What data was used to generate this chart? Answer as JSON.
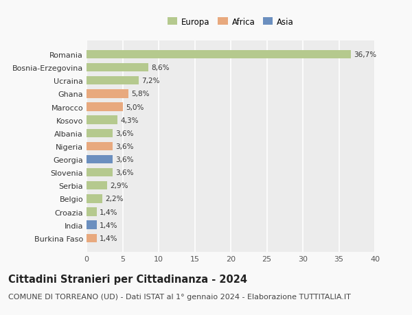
{
  "countries": [
    "Romania",
    "Bosnia-Erzegovina",
    "Ucraina",
    "Ghana",
    "Marocco",
    "Kosovo",
    "Albania",
    "Nigeria",
    "Georgia",
    "Slovenia",
    "Serbia",
    "Belgio",
    "Croazia",
    "India",
    "Burkina Faso"
  ],
  "values": [
    36.7,
    8.6,
    7.2,
    5.8,
    5.0,
    4.3,
    3.6,
    3.6,
    3.6,
    3.6,
    2.9,
    2.2,
    1.4,
    1.4,
    1.4
  ],
  "labels": [
    "36,7%",
    "8,6%",
    "7,2%",
    "5,8%",
    "5,0%",
    "4,3%",
    "3,6%",
    "3,6%",
    "3,6%",
    "3,6%",
    "2,9%",
    "2,2%",
    "1,4%",
    "1,4%",
    "1,4%"
  ],
  "continents": [
    "Europa",
    "Europa",
    "Europa",
    "Africa",
    "Africa",
    "Europa",
    "Europa",
    "Africa",
    "Asia",
    "Europa",
    "Europa",
    "Europa",
    "Europa",
    "Asia",
    "Africa"
  ],
  "colors": {
    "Europa": "#b5c98e",
    "Africa": "#e8a97e",
    "Asia": "#6b8fbf"
  },
  "legend_order": [
    "Europa",
    "Africa",
    "Asia"
  ],
  "xlim": [
    0,
    40
  ],
  "xticks": [
    0,
    5,
    10,
    15,
    20,
    25,
    30,
    35,
    40
  ],
  "title": "Cittadini Stranieri per Cittadinanza - 2024",
  "subtitle": "COMUNE DI TORREANO (UD) - Dati ISTAT al 1° gennaio 2024 - Elaborazione TUTTITALIA.IT",
  "plot_bg_color": "#ececec",
  "fig_bg_color": "#f9f9f9",
  "grid_color": "#ffffff",
  "bar_label_fontsize": 7.5,
  "ytick_fontsize": 8,
  "xtick_fontsize": 8,
  "title_fontsize": 10.5,
  "subtitle_fontsize": 8,
  "legend_fontsize": 8.5,
  "bar_height": 0.65
}
